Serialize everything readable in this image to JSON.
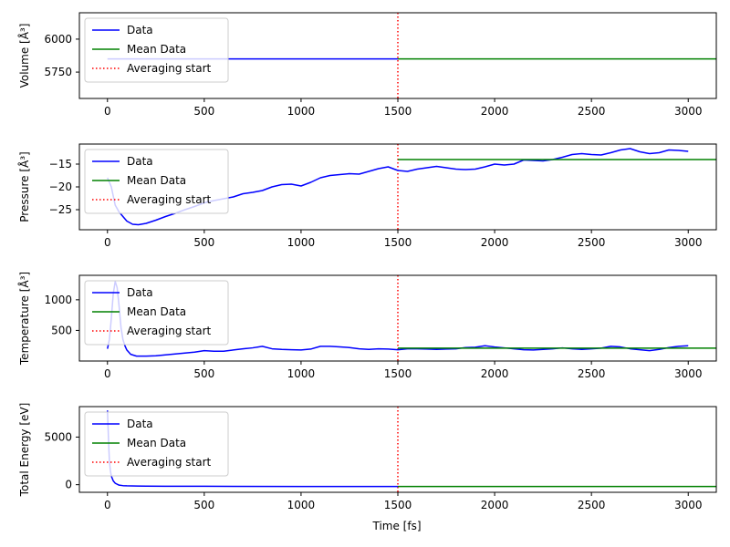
{
  "colors": {
    "data": "#0000ff",
    "mean": "#008000",
    "avg": "#ff0000",
    "frame": "#000000",
    "legend_border": "#cccccc"
  },
  "shared_xlabel": "Time [fs]",
  "chart_data": [
    {
      "type": "line",
      "ylabel": "Volume [Å³]",
      "xlim": [
        -145,
        3145
      ],
      "ylim": [
        5550,
        6200
      ],
      "xticks": [
        0,
        500,
        1000,
        1500,
        2000,
        2500,
        3000
      ],
      "yticks": [
        5750,
        6000
      ],
      "averaging_start": 1500,
      "series": [
        {
          "name": "Data",
          "x": [
            0,
            1500
          ],
          "y": [
            5850,
            5850
          ]
        },
        {
          "name": "Mean Data",
          "x": [
            1500,
            3145
          ],
          "y": [
            5850,
            5850
          ]
        }
      ],
      "legend": [
        "Data",
        "Mean Data",
        "Averaging start"
      ],
      "legend_position": "upper-left"
    },
    {
      "type": "line",
      "ylabel": "Pressure [Å³]",
      "xlim": [
        -145,
        3145
      ],
      "ylim": [
        -29.4,
        -10.6
      ],
      "xticks": [
        0,
        500,
        1000,
        1500,
        2000,
        2500,
        3000
      ],
      "yticks": [
        -25,
        -20,
        -15
      ],
      "averaging_start": 1500,
      "series": [
        {
          "name": "Data",
          "x": [
            0,
            20,
            40,
            60,
            80,
            100,
            130,
            160,
            200,
            250,
            300,
            350,
            400,
            450,
            500,
            550,
            600,
            650,
            700,
            750,
            800,
            850,
            900,
            950,
            1000,
            1050,
            1100,
            1150,
            1200,
            1250,
            1300,
            1350,
            1400,
            1450,
            1500,
            1550,
            1600,
            1650,
            1700,
            1750,
            1800,
            1850,
            1900,
            1950,
            2000,
            2050,
            2100,
            2150,
            2200,
            2250,
            2300,
            2350,
            2400,
            2450,
            2500,
            2550,
            2600,
            2650,
            2700,
            2750,
            2800,
            2850,
            2900,
            2950,
            3000
          ],
          "y": [
            -18.0,
            -20.0,
            -24.0,
            -25.5,
            -26.5,
            -27.5,
            -28.2,
            -28.3,
            -28.0,
            -27.3,
            -26.5,
            -25.8,
            -25.0,
            -24.3,
            -23.5,
            -23.0,
            -22.6,
            -22.2,
            -21.5,
            -21.2,
            -20.8,
            -20.0,
            -19.5,
            -19.4,
            -19.8,
            -19.0,
            -18.0,
            -17.5,
            -17.3,
            -17.1,
            -17.2,
            -16.6,
            -16.0,
            -15.6,
            -16.4,
            -16.6,
            -16.1,
            -15.8,
            -15.5,
            -15.8,
            -16.1,
            -16.2,
            -16.1,
            -15.6,
            -15.0,
            -15.2,
            -15.0,
            -14.1,
            -14.2,
            -14.3,
            -14.0,
            -13.5,
            -12.9,
            -12.7,
            -12.9,
            -13.0,
            -12.5,
            -11.9,
            -11.6,
            -12.3,
            -12.7,
            -12.5,
            -11.9,
            -12.0,
            -12.2
          ]
        },
        {
          "name": "Mean Data",
          "x": [
            1500,
            3145
          ],
          "y": [
            -14.0,
            -14.0
          ]
        }
      ],
      "legend": [
        "Data",
        "Mean Data",
        "Averaging start"
      ],
      "legend_position": "upper-left"
    },
    {
      "type": "line",
      "ylabel": "Temperature [Å³]",
      "xlim": [
        -145,
        3145
      ],
      "ylim": [
        0,
        1400
      ],
      "xticks": [
        0,
        500,
        1000,
        1500,
        2000,
        2500,
        3000
      ],
      "yticks": [
        500,
        1000
      ],
      "averaging_start": 1500,
      "series": [
        {
          "name": "Data",
          "x": [
            0,
            10,
            20,
            30,
            40,
            50,
            60,
            70,
            80,
            90,
            100,
            120,
            150,
            200,
            250,
            300,
            350,
            400,
            450,
            500,
            550,
            600,
            650,
            700,
            750,
            800,
            850,
            900,
            950,
            1000,
            1050,
            1100,
            1150,
            1200,
            1250,
            1300,
            1350,
            1400,
            1450,
            1500,
            1550,
            1600,
            1650,
            1700,
            1750,
            1800,
            1850,
            1900,
            1950,
            2000,
            2050,
            2100,
            2150,
            2200,
            2250,
            2300,
            2350,
            2400,
            2450,
            2500,
            2550,
            2600,
            2650,
            2700,
            2750,
            2800,
            2850,
            2900,
            2950,
            3000
          ],
          "y": [
            200,
            350,
            700,
            1100,
            1300,
            1200,
            900,
            550,
            350,
            250,
            180,
            110,
            80,
            80,
            85,
            100,
            115,
            130,
            145,
            170,
            160,
            160,
            180,
            200,
            215,
            240,
            200,
            190,
            185,
            180,
            195,
            240,
            240,
            230,
            220,
            200,
            190,
            200,
            195,
            185,
            200,
            200,
            195,
            190,
            195,
            200,
            220,
            225,
            250,
            230,
            215,
            200,
            185,
            180,
            190,
            200,
            215,
            200,
            190,
            200,
            210,
            240,
            230,
            200,
            185,
            170,
            190,
            220,
            240,
            250
          ]
        },
        {
          "name": "Mean Data",
          "x": [
            1500,
            3145
          ],
          "y": [
            210,
            210
          ]
        }
      ],
      "legend": [
        "Data",
        "Mean Data",
        "Averaging start"
      ],
      "legend_position": "upper-left"
    },
    {
      "type": "line",
      "ylabel": "Total Energy [eV]",
      "xlabel": "Time [fs]",
      "xlim": [
        -145,
        3145
      ],
      "ylim": [
        -800,
        8200
      ],
      "xticks": [
        0,
        500,
        1000,
        1500,
        2000,
        2500,
        3000
      ],
      "yticks": [
        0,
        5000
      ],
      "averaging_start": 1500,
      "series": [
        {
          "name": "Data",
          "x": [
            0,
            5,
            10,
            15,
            20,
            30,
            40,
            60,
            80,
            100,
            150,
            200,
            300,
            500,
            1000,
            1500
          ],
          "y": [
            7800,
            5000,
            2500,
            1500,
            900,
            400,
            150,
            -50,
            -100,
            -120,
            -140,
            -150,
            -160,
            -170,
            -185,
            -190
          ]
        },
        {
          "name": "Mean Data",
          "x": [
            1500,
            3145
          ],
          "y": [
            -190,
            -190
          ]
        }
      ],
      "legend": [
        "Data",
        "Mean Data",
        "Averaging start"
      ],
      "legend_position": "upper-left"
    }
  ]
}
